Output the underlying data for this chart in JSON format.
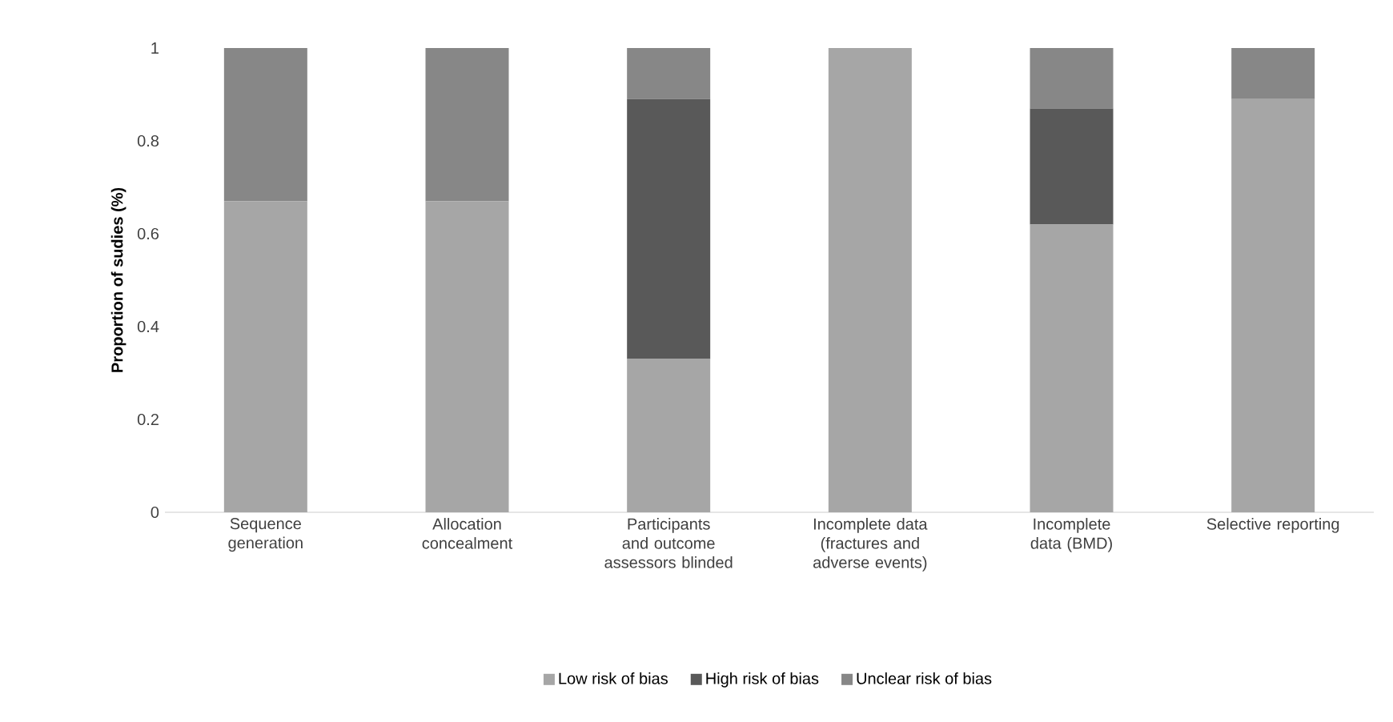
{
  "chart_data": {
    "type": "bar",
    "stacked": true,
    "ylabel": "Proportion of sudies (%)",
    "categories": [
      "Sequence generation",
      "Allocation concealment",
      "Participants and outcome assessors blinded",
      "Incomplete data (fractures and adverse events)",
      "Incomplete data (BMD)",
      "Selective reporting"
    ],
    "series": [
      {
        "name": "Low risk of bias",
        "color": "#a6a6a6",
        "values": [
          0.67,
          0.67,
          0.33,
          1,
          0.62,
          0.89
        ]
      },
      {
        "name": "High risk of bias",
        "color": "#595959",
        "values": [
          0,
          0,
          0.56,
          0,
          0.25,
          0
        ]
      },
      {
        "name": "Unclear risk of bias",
        "color": "#878787",
        "values": [
          0.33,
          0.33,
          0.11,
          0,
          0.13,
          0.11
        ]
      }
    ],
    "ylim": [
      0,
      1
    ],
    "yticks": [
      0,
      0.2,
      0.4,
      0.6,
      0.8,
      1
    ],
    "legend": "bottom",
    "grid": false
  }
}
